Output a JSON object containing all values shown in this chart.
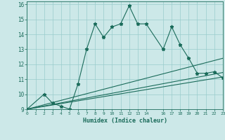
{
  "xlabel": "Humidex (Indice chaleur)",
  "bg_color": "#cce8e8",
  "grid_color": "#99cccc",
  "line_color": "#1a6b5a",
  "xlim": [
    0,
    23
  ],
  "ylim": [
    9.0,
    16.2
  ],
  "xticks": [
    0,
    1,
    2,
    3,
    4,
    5,
    6,
    7,
    8,
    9,
    10,
    11,
    12,
    13,
    14,
    16,
    17,
    18,
    19,
    20,
    21,
    22,
    23
  ],
  "xtick_labels": [
    "0",
    "1",
    "2",
    "3",
    "4",
    "5",
    "6",
    "7",
    "8",
    "9",
    "10",
    "11",
    "12",
    "13",
    "14",
    "16",
    "17",
    "18",
    "19",
    "20",
    "21",
    "22",
    "23"
  ],
  "yticks": [
    9,
    10,
    11,
    12,
    13,
    14,
    15,
    16
  ],
  "line1_x": [
    0,
    2,
    3,
    4,
    5,
    6,
    7,
    8,
    9,
    10,
    11,
    12,
    13,
    14,
    16,
    17,
    18,
    19,
    20,
    21,
    22,
    23
  ],
  "line1_y": [
    9.0,
    10.0,
    9.4,
    9.2,
    9.0,
    10.7,
    13.0,
    14.7,
    13.8,
    14.5,
    14.7,
    15.9,
    14.7,
    14.7,
    13.0,
    14.5,
    13.3,
    12.4,
    11.4,
    11.4,
    11.5,
    11.1
  ],
  "line2_x": [
    0,
    23
  ],
  "line2_y": [
    9.0,
    11.15
  ],
  "line3_x": [
    0,
    23
  ],
  "line3_y": [
    9.0,
    11.45
  ],
  "line4_x": [
    0,
    23
  ],
  "line4_y": [
    9.0,
    12.4
  ]
}
